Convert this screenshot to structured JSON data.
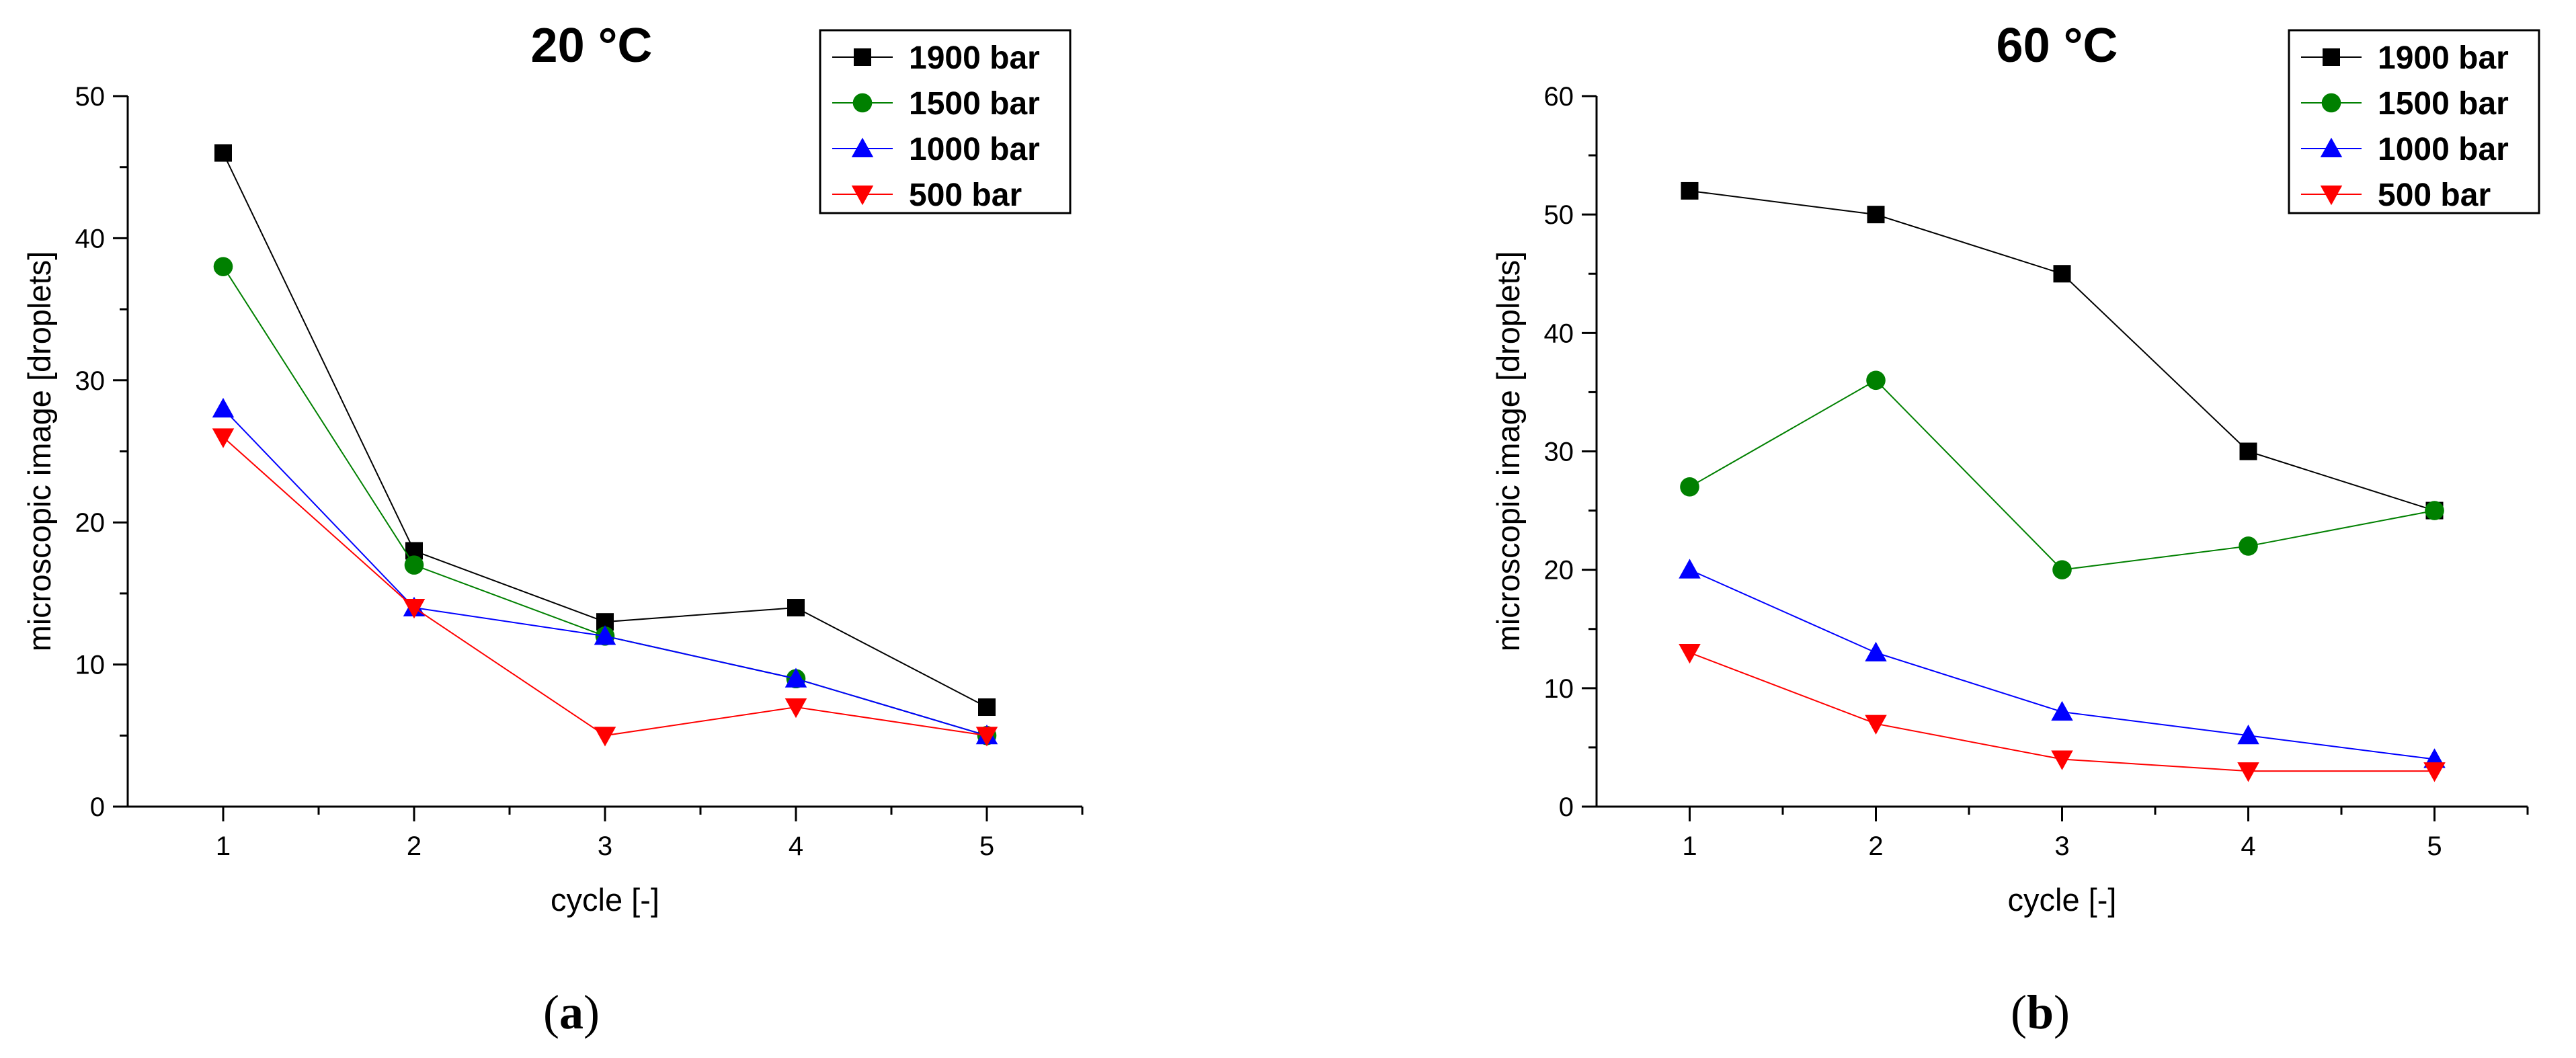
{
  "chart_data": [
    {
      "type": "line",
      "title": "20 °C",
      "panel_label": "a",
      "xlabel": "cycle [-]",
      "ylabel": "microscopic image [droplets]",
      "x": [
        1,
        2,
        3,
        4,
        5
      ],
      "xlim": [
        0.5,
        5.5
      ],
      "xticks": [
        1,
        2,
        3,
        4,
        5
      ],
      "ylim": [
        0,
        50
      ],
      "yticks": [
        0,
        10,
        20,
        30,
        40,
        50
      ],
      "legend_position": "top-right",
      "series": [
        {
          "name": "1900 bar",
          "color": "#000000",
          "marker": "square",
          "values": [
            46,
            18,
            13,
            14,
            7
          ]
        },
        {
          "name": "1500 bar",
          "color": "#008000",
          "marker": "circle",
          "values": [
            38,
            17,
            12,
            9,
            5
          ]
        },
        {
          "name": "1000 bar",
          "color": "#0000FF",
          "marker": "triangle-up",
          "values": [
            28,
            14,
            12,
            9,
            5
          ]
        },
        {
          "name": "500 bar",
          "color": "#FF0000",
          "marker": "triangle-down",
          "values": [
            26,
            14,
            5,
            7,
            5
          ]
        }
      ]
    },
    {
      "type": "line",
      "title": "60 °C",
      "panel_label": "b",
      "xlabel": "cycle [-]",
      "ylabel": "microscopic image [droplets]",
      "x": [
        1,
        2,
        3,
        4,
        5
      ],
      "xlim": [
        0.5,
        5.5
      ],
      "xticks": [
        1,
        2,
        3,
        4,
        5
      ],
      "ylim": [
        0,
        60
      ],
      "yticks": [
        0,
        10,
        20,
        30,
        40,
        50,
        60
      ],
      "legend_position": "top-right",
      "series": [
        {
          "name": "1900 bar",
          "color": "#000000",
          "marker": "square",
          "values": [
            52,
            50,
            45,
            30,
            25
          ]
        },
        {
          "name": "1500 bar",
          "color": "#008000",
          "marker": "circle",
          "values": [
            27,
            36,
            20,
            22,
            25
          ]
        },
        {
          "name": "1000 bar",
          "color": "#0000FF",
          "marker": "triangle-up",
          "values": [
            20,
            13,
            8,
            6,
            4
          ]
        },
        {
          "name": "500 bar",
          "color": "#FF0000",
          "marker": "triangle-down",
          "values": [
            13,
            7,
            4,
            3,
            3
          ]
        }
      ]
    }
  ]
}
